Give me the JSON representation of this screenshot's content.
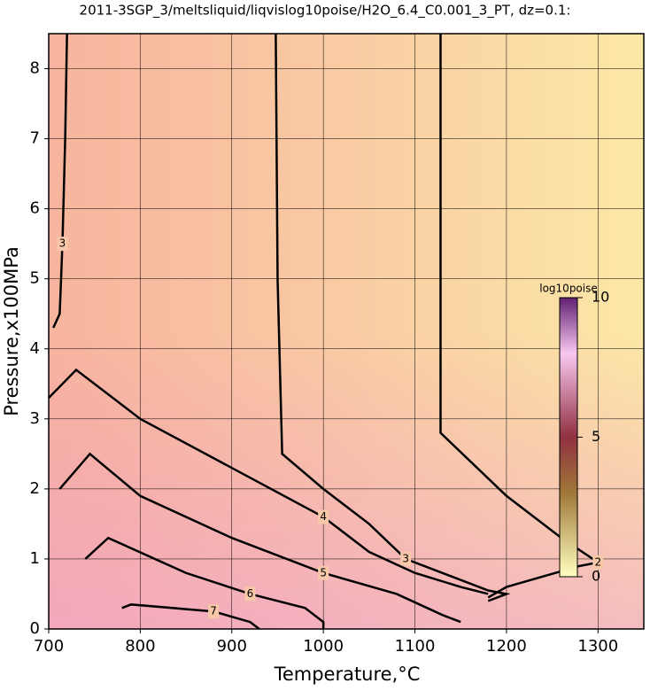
{
  "chart_data": {
    "type": "contour",
    "title": "2011-3SGP_3/meltsliquid/liqvislog10poise/H2O_6.4_C0.001_3_PT, dz=0.1:",
    "xlabel": "Temperature,°C",
    "ylabel": "Pressure,x100MPa",
    "xlim": [
      700,
      1350
    ],
    "ylim": [
      0,
      8.5
    ],
    "xticks": [
      700,
      800,
      900,
      1000,
      1100,
      1200,
      1300
    ],
    "yticks": [
      0,
      1,
      2,
      3,
      4,
      5,
      6,
      7,
      8
    ],
    "grid": true,
    "colorbar": {
      "label": "log10poise",
      "clim": [
        0,
        10
      ],
      "ticks": [
        0,
        5,
        10
      ]
    },
    "contours": [
      {
        "level": 2,
        "x": [
          1128,
          1128,
          1200,
          1260,
          1300,
          1280,
          1240,
          1200,
          1180
        ],
        "y": [
          8.5,
          2.8,
          1.9,
          1.3,
          0.95,
          0.9,
          0.75,
          0.6,
          0.45
        ]
      },
      {
        "level": 3,
        "x": [
          948,
          950,
          955,
          1000,
          1050,
          1090,
          1140,
          1180,
          1200,
          1180
        ],
        "y": [
          8.5,
          5.0,
          2.5,
          2.0,
          1.5,
          1.0,
          0.75,
          0.55,
          0.5,
          0.4
        ]
      },
      {
        "level": 3,
        "x": [
          720,
          718,
          715,
          712,
          705
        ],
        "y": [
          8.5,
          7.0,
          5.5,
          4.5,
          4.3
        ]
      },
      {
        "level": 4,
        "x": [
          700,
          730,
          800,
          900,
          1000,
          1050,
          1100,
          1150,
          1180
        ],
        "y": [
          3.3,
          3.7,
          3.0,
          2.3,
          1.6,
          1.1,
          0.8,
          0.6,
          0.5
        ]
      },
      {
        "level": 5,
        "x": [
          712,
          745,
          800,
          900,
          1000,
          1080,
          1130,
          1150
        ],
        "y": [
          2.0,
          2.5,
          1.9,
          1.3,
          0.8,
          0.5,
          0.2,
          0.1
        ]
      },
      {
        "level": 6,
        "x": [
          740,
          765,
          850,
          920,
          980,
          1000,
          1000
        ],
        "y": [
          1.0,
          1.3,
          0.8,
          0.5,
          0.3,
          0.1,
          0
        ]
      },
      {
        "level": 7,
        "x": [
          780,
          790,
          880,
          920,
          930
        ],
        "y": [
          0.3,
          0.35,
          0.25,
          0.1,
          0
        ]
      }
    ]
  }
}
